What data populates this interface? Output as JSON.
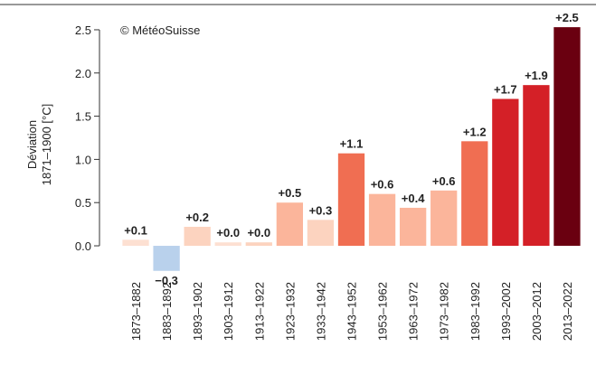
{
  "chart_data": {
    "type": "bar",
    "annotation": "© MétéoSuisse",
    "y_label": [
      "Déviation",
      "1871–1900 [°C]"
    ],
    "categories": [
      "1873–1882",
      "1883–1892",
      "1893–1902",
      "1903–1912",
      "1913–1922",
      "1923–1932",
      "1933–1942",
      "1943–1952",
      "1953–1962",
      "1963–1972",
      "1973–1982",
      "1983–1992",
      "1993–2002",
      "2003–2012",
      "2013–2022"
    ],
    "values": [
      0.07,
      -0.29,
      0.22,
      0.04,
      0.04,
      0.5,
      0.3,
      1.07,
      0.6,
      0.44,
      0.64,
      1.21,
      1.7,
      1.86,
      2.53
    ],
    "value_labels": [
      "+0.1",
      "−0.3",
      "+0.2",
      "+0.0",
      "+0.0",
      "+0.5",
      "+0.3",
      "+1.1",
      "+0.6",
      "+0.4",
      "+0.6",
      "+1.2",
      "+1.7",
      "+1.9",
      "+2.5"
    ],
    "colors": [
      "#fde0d2",
      "#b9d1ec",
      "#fcd3bf",
      "#fde0d2",
      "#fcd3bf",
      "#fbb59b",
      "#fcd3bf",
      "#f06e52",
      "#fbb59b",
      "#fbb59b",
      "#fbb59b",
      "#f06e52",
      "#d42027",
      "#d42027",
      "#6a0010"
    ],
    "ylim": [
      -0.35,
      2.6
    ],
    "yticks": [
      {
        "value": 0,
        "label": "0.0"
      },
      0.5,
      {
        "value": 1,
        "label": "1.0"
      },
      1.5,
      {
        "value": 2,
        "label": "2.0"
      },
      2.5
    ]
  }
}
